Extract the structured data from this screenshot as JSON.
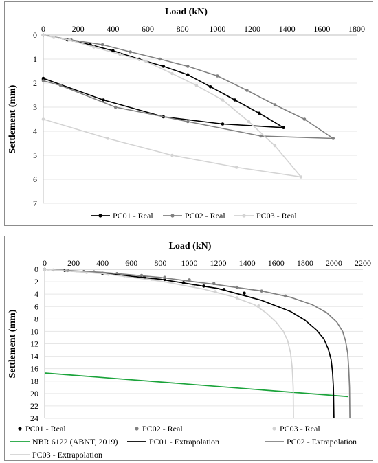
{
  "chart_data": [
    {
      "type": "line",
      "xlabel": "Load (kN)",
      "ylabel": "Settlement (mm)",
      "xlim": [
        0,
        1800
      ],
      "ylim": [
        0,
        7
      ],
      "y_reversed": true,
      "x_axis_position": "top",
      "xticks": [
        0,
        200,
        400,
        600,
        800,
        1000,
        1200,
        1400,
        1600,
        1800
      ],
      "yticks": [
        0,
        1,
        2,
        3,
        4,
        5,
        6,
        7
      ],
      "grid": "horizontal",
      "legend": "bottom",
      "series": [
        {
          "name": "PC01 - Real",
          "color": "#000000",
          "marker": "circle",
          "points": [
            [
              0,
              0
            ],
            [
              140,
              0.2
            ],
            [
              270,
              0.4
            ],
            [
              400,
              0.65
            ],
            [
              550,
              1.0
            ],
            [
              690,
              1.3
            ],
            [
              830,
              1.65
            ],
            [
              960,
              2.15
            ],
            [
              1100,
              2.7
            ],
            [
              1240,
              3.25
            ],
            [
              1380,
              3.85
            ],
            [
              1030,
              3.7
            ],
            [
              690,
              3.4
            ],
            [
              345,
              2.7
            ],
            [
              0,
              1.8
            ],
            [
              0,
              1.85
            ]
          ]
        },
        {
          "name": "PC02 - Real",
          "color": "#808080",
          "marker": "circle",
          "points": [
            [
              0,
              0
            ],
            [
              160,
              0.2
            ],
            [
              340,
              0.4
            ],
            [
              500,
              0.7
            ],
            [
              670,
              1.0
            ],
            [
              830,
              1.3
            ],
            [
              1000,
              1.7
            ],
            [
              1170,
              2.3
            ],
            [
              1330,
              2.9
            ],
            [
              1500,
              3.5
            ],
            [
              1665,
              4.3
            ],
            [
              1250,
              4.2
            ],
            [
              830,
              3.6
            ],
            [
              415,
              3.0
            ],
            [
              100,
              2.1
            ],
            [
              0,
              1.9
            ]
          ]
        },
        {
          "name": "PC03 - Real",
          "color": "#d3d3d3",
          "marker": "circle",
          "points": [
            [
              0,
              0
            ],
            [
              60,
              0.1
            ],
            [
              150,
              0.2
            ],
            [
              290,
              0.5
            ],
            [
              440,
              0.8
            ],
            [
              590,
              1.1
            ],
            [
              740,
              1.6
            ],
            [
              880,
              2.1
            ],
            [
              1030,
              2.7
            ],
            [
              1180,
              3.6
            ],
            [
              1330,
              4.6
            ],
            [
              1480,
              5.9
            ],
            [
              1110,
              5.5
            ],
            [
              740,
              5.0
            ],
            [
              370,
              4.3
            ],
            [
              0,
              3.5
            ]
          ]
        }
      ]
    },
    {
      "type": "line",
      "xlabel": "Load (kN)",
      "ylabel": "Settlement (mm)",
      "xlim": [
        0,
        2200
      ],
      "ylim": [
        0,
        24
      ],
      "y_reversed": true,
      "x_axis_position": "top",
      "xticks": [
        0,
        200,
        400,
        600,
        800,
        1000,
        1200,
        1400,
        1600,
        1800,
        2000,
        2200
      ],
      "yticks": [
        0,
        2,
        4,
        6,
        8,
        10,
        12,
        14,
        16,
        18,
        20,
        22,
        24
      ],
      "grid": "horizontal",
      "legend": "bottom",
      "series": [
        {
          "name": "PC01 - Real",
          "color": "#000000",
          "style": "markers",
          "points": [
            [
              0,
              0
            ],
            [
              140,
              0.2
            ],
            [
              270,
              0.4
            ],
            [
              400,
              0.65
            ],
            [
              550,
              1.0
            ],
            [
              690,
              1.3
            ],
            [
              830,
              1.65
            ],
            [
              960,
              2.15
            ],
            [
              1100,
              2.7
            ],
            [
              1240,
              3.25
            ],
            [
              1380,
              3.85
            ]
          ]
        },
        {
          "name": "PC02 - Real",
          "color": "#808080",
          "style": "markers",
          "points": [
            [
              0,
              0
            ],
            [
              160,
              0.2
            ],
            [
              340,
              0.4
            ],
            [
              500,
              0.7
            ],
            [
              670,
              1.0
            ],
            [
              830,
              1.3
            ],
            [
              1000,
              1.7
            ],
            [
              1170,
              2.3
            ],
            [
              1330,
              2.9
            ],
            [
              1500,
              3.5
            ],
            [
              1665,
              4.3
            ]
          ]
        },
        {
          "name": "PC03 - Real",
          "color": "#d3d3d3",
          "style": "markers",
          "points": [
            [
              0,
              0
            ],
            [
              60,
              0.1
            ],
            [
              150,
              0.2
            ],
            [
              290,
              0.5
            ],
            [
              440,
              0.8
            ],
            [
              590,
              1.1
            ],
            [
              740,
              1.6
            ],
            [
              880,
              2.1
            ],
            [
              1030,
              2.7
            ],
            [
              1180,
              3.6
            ],
            [
              1330,
              4.6
            ],
            [
              1480,
              5.9
            ]
          ]
        },
        {
          "name": "NBR 6122 (ABNT, 2019)",
          "color": "#1aa33a",
          "style": "line",
          "points": [
            [
              0,
              16.7
            ],
            [
              2100,
              20.5
            ]
          ]
        },
        {
          "name": "PC01 - Extrapolation",
          "color": "#000000",
          "style": "line",
          "points": [
            [
              0,
              0
            ],
            [
              400,
              0.65
            ],
            [
              800,
              1.6
            ],
            [
              1200,
              3.1
            ],
            [
              1500,
              5.0
            ],
            [
              1700,
              6.8
            ],
            [
              1800,
              8.2
            ],
            [
              1880,
              9.8
            ],
            [
              1930,
              11.2
            ],
            [
              1960,
              12.8
            ],
            [
              1980,
              14.5
            ],
            [
              1990,
              16.5
            ],
            [
              1996,
              19.0
            ],
            [
              2000,
              24.0
            ]
          ]
        },
        {
          "name": "PC02 - Extrapolation",
          "color": "#808080",
          "style": "line",
          "points": [
            [
              0,
              0
            ],
            [
              400,
              0.5
            ],
            [
              800,
              1.3
            ],
            [
              1200,
              2.5
            ],
            [
              1500,
              3.5
            ],
            [
              1700,
              4.5
            ],
            [
              1850,
              5.7
            ],
            [
              1950,
              7.0
            ],
            [
              2020,
              8.5
            ],
            [
              2060,
              10.0
            ],
            [
              2080,
              11.5
            ],
            [
              2095,
              13.5
            ],
            [
              2102,
              16.0
            ],
            [
              2108,
              19.0
            ],
            [
              2110,
              24.0
            ]
          ]
        },
        {
          "name": "PC03 - Extrapolation",
          "color": "#d3d3d3",
          "style": "line",
          "points": [
            [
              0,
              0
            ],
            [
              400,
              0.7
            ],
            [
              800,
              1.9
            ],
            [
              1100,
              3.2
            ],
            [
              1300,
              4.4
            ],
            [
              1450,
              5.7
            ],
            [
              1530,
              7.0
            ],
            [
              1600,
              8.5
            ],
            [
              1650,
              10.0
            ],
            [
              1680,
              11.5
            ],
            [
              1700,
              13.5
            ],
            [
              1712,
              16.0
            ],
            [
              1718,
              19.0
            ],
            [
              1720,
              24.0
            ]
          ]
        }
      ]
    }
  ]
}
